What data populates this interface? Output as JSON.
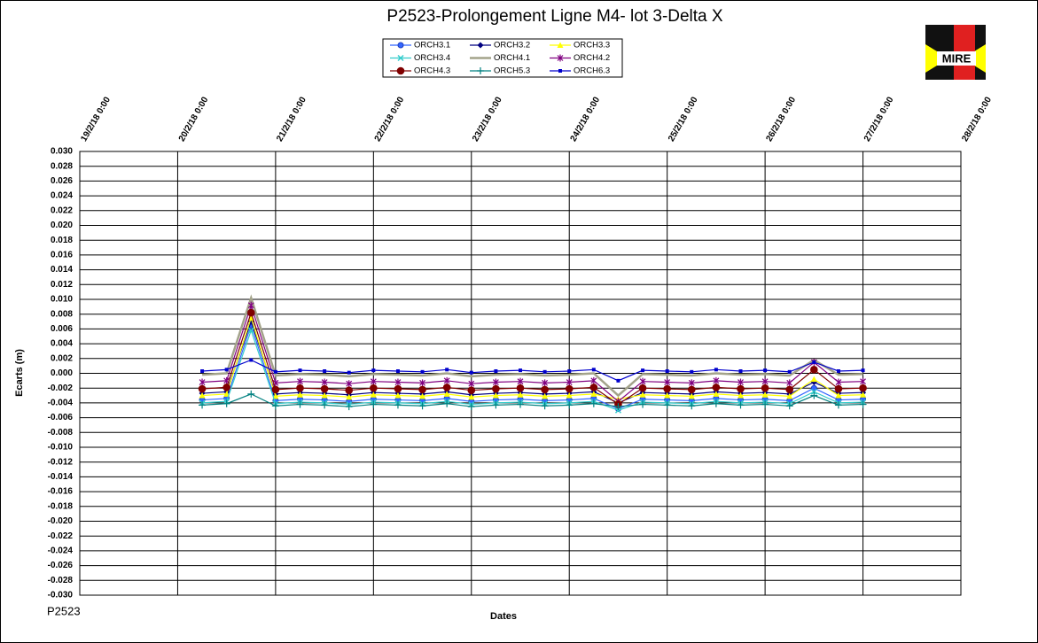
{
  "chart_data": {
    "type": "line",
    "title": "P2523-Prolongement  Ligne  M4- lot 3-Delta X",
    "x_label": "Dates",
    "y_label": "Ecarts (m)",
    "footer": "P2523",
    "logo_text": "MIRE",
    "grid": true,
    "xlim": [
      "19/2/18 0:00",
      "28/2/18 0:00"
    ],
    "xticks": [
      "19/2/18 0:00",
      "20/2/18 0:00",
      "21/2/18 0:00",
      "22/2/18 0:00",
      "23/2/18 0:00",
      "24/2/18 0:00",
      "25/2/18 0:00",
      "26/2/18 0:00",
      "27/2/18 0:00",
      "28/2/18 0:00"
    ],
    "ylim": [
      -0.03,
      0.03
    ],
    "yticks": [
      {
        "value": 0.03,
        "label": "0.030"
      },
      {
        "value": 0.028,
        "label": "0.028"
      },
      {
        "value": 0.026,
        "label": "0.026"
      },
      {
        "value": 0.024,
        "label": "0.024"
      },
      {
        "value": 0.022,
        "label": "0.022"
      },
      {
        "value": 0.02,
        "label": "0.020"
      },
      {
        "value": 0.018,
        "label": "0.018"
      },
      {
        "value": 0.016,
        "label": "0.016"
      },
      {
        "value": 0.014,
        "label": "0.014"
      },
      {
        "value": 0.012,
        "label": "0.012"
      },
      {
        "value": 0.01,
        "label": "0.010"
      },
      {
        "value": 0.008,
        "label": "0.008"
      },
      {
        "value": 0.006,
        "label": "0.006"
      },
      {
        "value": 0.004,
        "label": "0.004"
      },
      {
        "value": 0.002,
        "label": "0.002"
      },
      {
        "value": 0,
        "label": "0.000"
      },
      {
        "value": -0.002,
        "label": "-0.002"
      },
      {
        "value": -0.004,
        "label": "-0.004"
      },
      {
        "value": -0.006,
        "label": "-0.006"
      },
      {
        "value": -0.008,
        "label": "-0.008"
      },
      {
        "value": -0.01,
        "label": "-0.010"
      },
      {
        "value": -0.012,
        "label": "-0.012"
      },
      {
        "value": -0.014,
        "label": "-0.014"
      },
      {
        "value": -0.016,
        "label": "-0.016"
      },
      {
        "value": -0.018,
        "label": "-0.018"
      },
      {
        "value": -0.02,
        "label": "-0.020"
      },
      {
        "value": -0.022,
        "label": "-0.022"
      },
      {
        "value": -0.024,
        "label": "-0.024"
      },
      {
        "value": -0.026,
        "label": "-0.026"
      },
      {
        "value": -0.028,
        "label": "-0.028"
      },
      {
        "value": -0.03,
        "label": "-0.030"
      }
    ],
    "x": [
      "20/2/18 6:00",
      "20/2/18 12:00",
      "20/2/18 18:00",
      "21/2/18 0:00",
      "21/2/18 6:00",
      "21/2/18 12:00",
      "21/2/18 18:00",
      "22/2/18 0:00",
      "22/2/18 6:00",
      "22/2/18 12:00",
      "22/2/18 18:00",
      "23/2/18 0:00",
      "23/2/18 6:00",
      "23/2/18 12:00",
      "23/2/18 18:00",
      "24/2/18 0:00",
      "24/2/18 6:00",
      "24/2/18 12:00",
      "24/2/18 18:00",
      "25/2/18 0:00",
      "25/2/18 6:00",
      "25/2/18 12:00",
      "25/2/18 18:00",
      "26/2/18 0:00",
      "26/2/18 6:00",
      "26/2/18 12:00",
      "26/2/18 18:00",
      "27/2/18 0:00"
    ],
    "series": [
      {
        "name": "ORCH3.1",
        "color": "#3366ff",
        "marker": "circle",
        "values": [
          -0.0036,
          -0.0034,
          0.0065,
          -0.0037,
          -0.0035,
          -0.0036,
          -0.0038,
          -0.0035,
          -0.0036,
          -0.0037,
          -0.0034,
          -0.0038,
          -0.0036,
          -0.0035,
          -0.0037,
          -0.0036,
          -0.0034,
          -0.0048,
          -0.0035,
          -0.0036,
          -0.0037,
          -0.0034,
          -0.0036,
          -0.0035,
          -0.0037,
          -0.002,
          -0.0036,
          -0.0035
        ]
      },
      {
        "name": "ORCH3.2",
        "color": "#000080",
        "marker": "diamond",
        "values": [
          -0.0027,
          -0.0025,
          0.007,
          -0.0028,
          -0.0026,
          -0.0027,
          -0.0029,
          -0.0026,
          -0.0027,
          -0.0028,
          -0.0025,
          -0.0029,
          -0.0027,
          -0.0026,
          -0.0028,
          -0.0027,
          -0.0025,
          -0.004,
          -0.0026,
          -0.0027,
          -0.0028,
          -0.0025,
          -0.0027,
          -0.0026,
          -0.0028,
          -0.0012,
          -0.0027,
          -0.0026
        ]
      },
      {
        "name": "ORCH3.3",
        "color": "#ffff00",
        "marker": "triangle",
        "values": [
          -0.003,
          -0.0028,
          0.0075,
          -0.0031,
          -0.0029,
          -0.003,
          -0.0032,
          -0.0029,
          -0.003,
          -0.0031,
          -0.0028,
          -0.0032,
          -0.003,
          -0.0029,
          -0.0031,
          -0.003,
          -0.0028,
          -0.0035,
          -0.0029,
          -0.003,
          -0.0031,
          -0.0028,
          -0.003,
          -0.0029,
          -0.0031,
          -0.0008,
          -0.003,
          -0.0029
        ]
      },
      {
        "name": "ORCH3.4",
        "color": "#33cccc",
        "marker": "x",
        "values": [
          -0.004,
          -0.0038,
          0.0058,
          -0.0041,
          -0.0039,
          -0.004,
          -0.0042,
          -0.0039,
          -0.004,
          -0.0041,
          -0.0038,
          -0.0042,
          -0.004,
          -0.0039,
          -0.0041,
          -0.004,
          -0.0038,
          -0.005,
          -0.0039,
          -0.004,
          -0.0041,
          -0.0038,
          -0.004,
          -0.0039,
          -0.0041,
          -0.0025,
          -0.004,
          -0.0039
        ]
      },
      {
        "name": "ORCH4.1",
        "color": "#a3a38a",
        "marker": "none",
        "values": [
          -0.0002,
          0,
          0.0102,
          -0.0003,
          -0.0001,
          -0.0002,
          -0.0004,
          -0.0001,
          -0.0002,
          -0.0003,
          0,
          -0.0004,
          -0.0002,
          -0.0001,
          -0.0003,
          -0.0002,
          0,
          -0.003,
          -0.0001,
          -0.0002,
          -0.0003,
          0,
          -0.0002,
          -0.0001,
          -0.0003,
          0.0018,
          -0.0002,
          -0.0001
        ]
      },
      {
        "name": "ORCH4.2",
        "color": "#800080",
        "marker": "star",
        "values": [
          -0.0012,
          -0.001,
          0.0092,
          -0.0013,
          -0.0011,
          -0.0012,
          -0.0014,
          -0.0011,
          -0.0012,
          -0.0013,
          -0.001,
          -0.0014,
          -0.0012,
          -0.0011,
          -0.0013,
          -0.0012,
          -0.001,
          -0.0038,
          -0.0011,
          -0.0012,
          -0.0013,
          -0.001,
          -0.0012,
          -0.0011,
          -0.0013,
          0.0015,
          -0.0012,
          -0.0011
        ]
      },
      {
        "name": "ORCH4.3",
        "color": "#800000",
        "marker": "bigcircle",
        "values": [
          -0.0021,
          -0.0019,
          0.0082,
          -0.0022,
          -0.002,
          -0.0021,
          -0.0023,
          -0.002,
          -0.0021,
          -0.0022,
          -0.0019,
          -0.0023,
          -0.0021,
          -0.002,
          -0.0022,
          -0.0021,
          -0.0019,
          -0.0042,
          -0.002,
          -0.0021,
          -0.0022,
          -0.0019,
          -0.0021,
          -0.002,
          -0.0022,
          0.0005,
          -0.0021,
          -0.002
        ]
      },
      {
        "name": "ORCH5.3",
        "color": "#008080",
        "marker": "plus",
        "values": [
          -0.0043,
          -0.0041,
          -0.0028,
          -0.0044,
          -0.0042,
          -0.0043,
          -0.0045,
          -0.0042,
          -0.0043,
          -0.0044,
          -0.0041,
          -0.0045,
          -0.0043,
          -0.0042,
          -0.0044,
          -0.0043,
          -0.0041,
          -0.0045,
          -0.0042,
          -0.0043,
          -0.0044,
          -0.0041,
          -0.0043,
          -0.0042,
          -0.0044,
          -0.003,
          -0.0043,
          -0.0042
        ]
      },
      {
        "name": "ORCH6.3",
        "color": "#0000cc",
        "marker": "square",
        "values": [
          0.0003,
          0.0005,
          0.0018,
          0.0002,
          0.0004,
          0.0003,
          0.0001,
          0.0004,
          0.0003,
          0.0002,
          0.0005,
          0.0001,
          0.0003,
          0.0004,
          0.0002,
          0.0003,
          0.0005,
          -0.001,
          0.0004,
          0.0003,
          0.0002,
          0.0005,
          0.0003,
          0.0004,
          0.0002,
          0.0015,
          0.0003,
          0.0004
        ]
      }
    ]
  }
}
